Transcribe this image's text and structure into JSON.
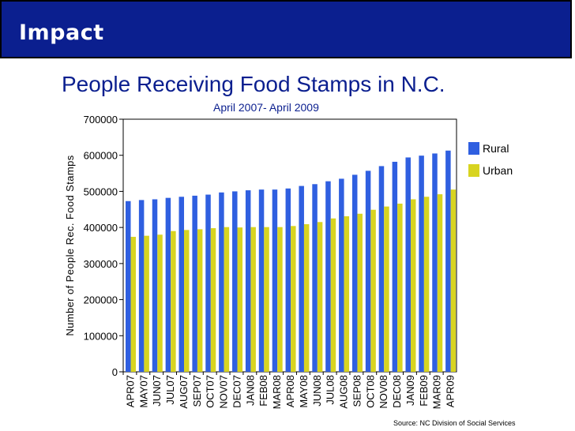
{
  "header": {
    "title": "Impact"
  },
  "chart_data": {
    "type": "bar",
    "title": "People Receiving Food Stamps in N.C.",
    "subtitle": "April 2007- April 2009",
    "ylabel": "Number of People Rec. Food Stamps",
    "xlabel": "",
    "ylim": [
      0,
      700000
    ],
    "yticks": [
      0,
      100000,
      200000,
      300000,
      400000,
      500000,
      600000,
      700000
    ],
    "ytick_labels": [
      "0",
      "100000",
      "200000",
      "300000",
      "400000",
      "500000",
      "600000",
      "700000"
    ],
    "grid": false,
    "legend_position": "right",
    "categories": [
      "APR07",
      "MAY07",
      "JUN07",
      "JUL07",
      "AUG07",
      "SEP07",
      "OCT07",
      "NOV07",
      "DEC07",
      "JAN08",
      "FEB08",
      "MAR08",
      "APR08",
      "MAY08",
      "JUN08",
      "JUL08",
      "AUG08",
      "SEP08",
      "OCT08",
      "NOV08",
      "DEC08",
      "JAN09",
      "FEB09",
      "MAR09",
      "APR09"
    ],
    "series": [
      {
        "name": "Rural",
        "color": "#2f5fe0",
        "values": [
          473000,
          476000,
          478000,
          482000,
          485000,
          488000,
          491000,
          497000,
          500000,
          503000,
          505000,
          505000,
          508000,
          515000,
          520000,
          528000,
          535000,
          546000,
          557000,
          570000,
          582000,
          594000,
          599000,
          605000,
          613000
        ]
      },
      {
        "name": "Urban",
        "color": "#d8d420",
        "values": [
          374000,
          377000,
          380000,
          390000,
          393000,
          395000,
          398000,
          401000,
          400000,
          401000,
          401000,
          401000,
          404000,
          409000,
          415000,
          425000,
          431000,
          438000,
          449000,
          458000,
          466000,
          478000,
          485000,
          492000,
          505000
        ]
      }
    ]
  },
  "footer": {
    "source": "Source: NC Division of Social Services"
  }
}
